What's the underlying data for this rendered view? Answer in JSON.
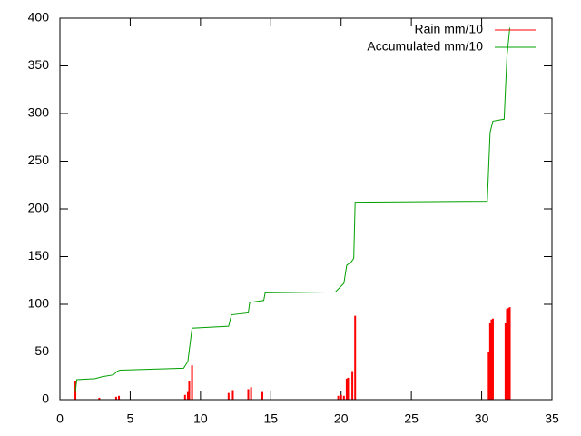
{
  "chart_data": {
    "type": "line",
    "series": [
      {
        "name": "Rain mm/10",
        "color": "#ff0000",
        "style": "impulses",
        "x": [
          1.1,
          2.8,
          4.0,
          4.2,
          8.9,
          9.1,
          9.2,
          9.4,
          12.0,
          12.3,
          13.4,
          13.6,
          14.4,
          19.8,
          20.0,
          20.2,
          20.4,
          20.5,
          20.8,
          21.0,
          30.5,
          30.6,
          30.7,
          30.8,
          31.7,
          31.8,
          31.9,
          32.0
        ],
        "values": [
          20,
          2,
          3,
          4,
          5,
          8,
          20,
          36,
          7,
          10,
          11,
          13,
          8,
          4,
          5,
          4,
          22,
          23,
          30,
          88,
          50,
          80,
          84,
          85,
          80,
          95,
          96,
          97
        ]
      },
      {
        "name": "Accumulated mm/10",
        "color": "#00a000",
        "style": "lines",
        "x": [
          1.1,
          1.2,
          2.5,
          3.0,
          3.8,
          4.1,
          4.3,
          8.8,
          9.1,
          9.4,
          12.0,
          12.2,
          13.4,
          13.5,
          14.5,
          14.6,
          19.6,
          20.2,
          20.4,
          20.7,
          20.9,
          21.0,
          30.4,
          30.6,
          30.8,
          31.6,
          31.8,
          32.0
        ],
        "values": [
          8,
          21,
          22,
          24,
          26,
          30,
          31,
          33,
          40,
          75,
          77,
          89,
          91,
          102,
          104,
          112,
          113,
          122,
          141,
          144,
          148,
          207,
          208,
          280,
          292,
          294,
          360,
          390
        ]
      }
    ],
    "xlim": [
      0,
      35
    ],
    "xticks": [
      0,
      5,
      10,
      15,
      20,
      25,
      30,
      35
    ],
    "ylim": [
      0,
      400
    ],
    "yticks": [
      0,
      50,
      100,
      150,
      200,
      250,
      300,
      350,
      400
    ],
    "legend": "top-right"
  }
}
